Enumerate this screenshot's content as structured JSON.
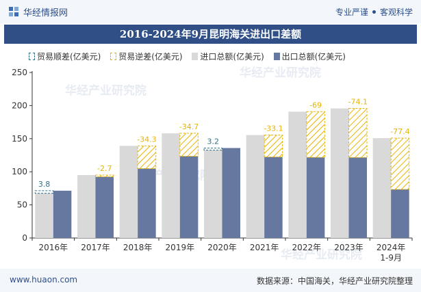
{
  "header": {
    "brand": "华经情报网",
    "tag_left": "专业严谨",
    "tag_right": "客观科学"
  },
  "title": "2016-2024年9月昆明海关进出口差额",
  "legend": {
    "surplus": "贸易顺差(亿美元)",
    "deficit": "贸易逆差(亿美元)",
    "import": "进口总额(亿美元)",
    "export": "出口总额(亿美元)"
  },
  "watermark": "华经产业研究院",
  "footer": {
    "site": "www.huaon.com",
    "source": "数据来源：中国海关，华经产业研究院整理"
  },
  "colors": {
    "import": "#d9d9d9",
    "export": "#6677a0",
    "surplus": "#2f6f8a",
    "deficit": "#e8b400",
    "title_bg": "#2f4f86"
  },
  "chart_data": {
    "type": "bar",
    "categories": [
      "2016年",
      "2017年",
      "2018年",
      "2019年",
      "2020年",
      "2021年",
      "2022年",
      "2023年",
      "2024年\n1-9月"
    ],
    "series": [
      {
        "name": "进口总额(亿美元)",
        "values": [
          67.6,
          95.1,
          139.1,
          158.2,
          132.7,
          155.5,
          190.8,
          195.7,
          150.8
        ]
      },
      {
        "name": "出口总额(亿美元)",
        "values": [
          71.4,
          92.4,
          104.8,
          123.5,
          135.9,
          122.4,
          121.8,
          121.6,
          73.4
        ]
      }
    ],
    "balance": {
      "values": [
        3.8,
        -2.7,
        -34.3,
        -34.7,
        3.2,
        -33.1,
        -69,
        -74.1,
        -77.4
      ],
      "labels": [
        "3.8",
        "-2.7",
        "-34.3",
        "-34.7",
        "3.2",
        "-33.1",
        "-69",
        "-74.1",
        "-77.4"
      ]
    },
    "y_ticks": [
      0,
      50,
      100,
      150,
      200,
      250
    ],
    "ylim": [
      0,
      250
    ],
    "grid": false,
    "legend_position": "top"
  }
}
